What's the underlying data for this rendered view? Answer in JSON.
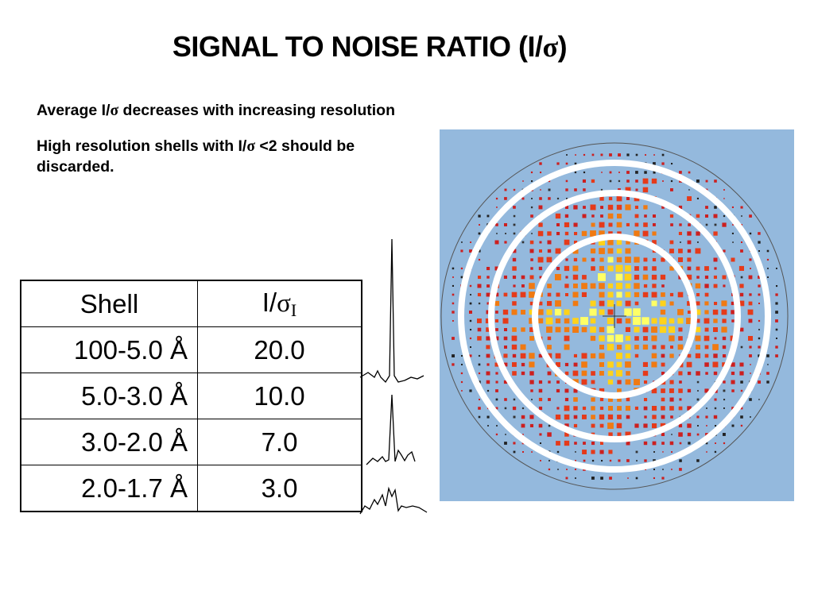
{
  "slide": {
    "title_prefix": "SIGNAL TO NOISE RATIO (I/",
    "title_sigma": "σ",
    "title_suffix": ")"
  },
  "notes": {
    "line1_pre": "Average I/",
    "line1_sigma": "σ",
    "line1_post": " decreases with increasing resolution",
    "line2_pre": "High resolution shells with I/",
    "line2_sigma": "σ",
    "line2_post": " <2 should be discarded."
  },
  "table": {
    "header_shell": "Shell",
    "header_ratio_pre": "I/",
    "header_ratio_sigma": "σ",
    "header_ratio_sub": "I",
    "rows": [
      {
        "shell": "100-5.0 Å",
        "ratio": "20.0"
      },
      {
        "shell": "5.0-3.0 Å",
        "ratio": "10.0"
      },
      {
        "shell": "3.0-2.0 Å",
        "ratio": "7.0"
      },
      {
        "shell": "2.0-1.7 Å",
        "ratio": "3.0"
      }
    ]
  },
  "diffraction_image": {
    "background_color": "#94b9dd",
    "spot_colors": [
      "#cc1f1f",
      "#e53a1a",
      "#f07a12",
      "#ffd21a",
      "#ffff66"
    ],
    "ring_color": "#ffffff"
  },
  "icons": {
    "peak_traces": "signal-peak-traces"
  }
}
